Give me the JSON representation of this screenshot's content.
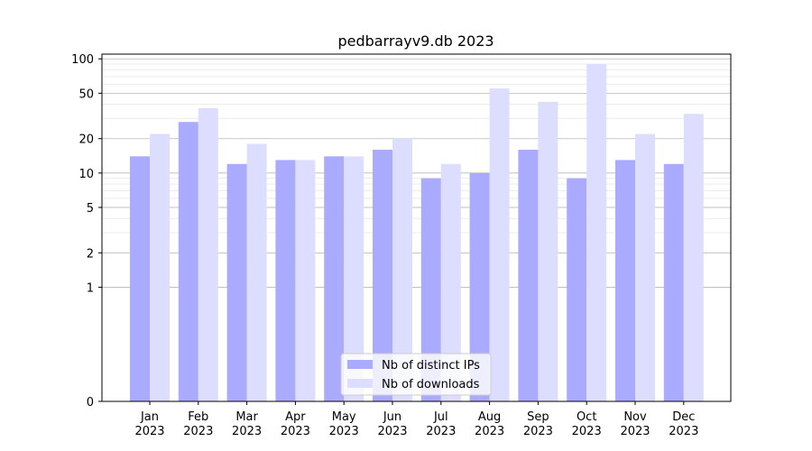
{
  "chart_data": {
    "type": "bar",
    "title": "pedbarrayv9.db 2023",
    "xlabel": "",
    "ylabel": "",
    "yscale": "symlog",
    "ylim": [
      0,
      110
    ],
    "yticks": [
      0,
      1,
      2,
      5,
      10,
      20,
      50,
      100
    ],
    "grid": true,
    "legend_position": "bottom-center",
    "categories": [
      "Jan\n2023",
      "Feb\n2023",
      "Mar\n2023",
      "Apr\n2023",
      "May\n2023",
      "Jun\n2023",
      "Jul\n2023",
      "Aug\n2023",
      "Sep\n2023",
      "Oct\n2023",
      "Nov\n2023",
      "Dec\n2023"
    ],
    "series": [
      {
        "name": "Nb of distinct IPs",
        "color": "#aaaaff",
        "values": [
          14,
          28,
          12,
          13,
          14,
          16,
          9,
          10,
          16,
          9,
          13,
          12
        ]
      },
      {
        "name": "Nb of downloads",
        "color": "#ddddff",
        "values": [
          22,
          37,
          18,
          13,
          14,
          20,
          12,
          55,
          42,
          90,
          22,
          33
        ]
      }
    ]
  }
}
